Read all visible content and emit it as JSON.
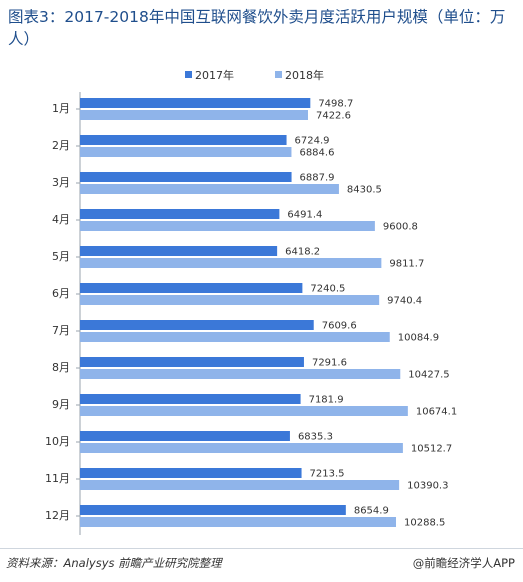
{
  "chart_data": {
    "type": "bar",
    "orientation": "horizontal",
    "title": "图表3：2017-2018年中国互联网餐饮外卖月度活跃用户规模（单位：万人）",
    "categories": [
      "1月",
      "2月",
      "3月",
      "4月",
      "5月",
      "6月",
      "7月",
      "8月",
      "9月",
      "10月",
      "11月",
      "12月"
    ],
    "series": [
      {
        "name": "2017年",
        "color": "#3b78d8",
        "values": [
          7498.7,
          6724.9,
          6887.9,
          6491.4,
          6418.2,
          7240.5,
          7609.6,
          7291.6,
          7181.9,
          6835.3,
          7213.5,
          8654.9
        ]
      },
      {
        "name": "2018年",
        "color": "#8fb4ea",
        "values": [
          7422.6,
          6884.6,
          8430.5,
          9600.8,
          9811.7,
          9740.4,
          10084.9,
          10427.5,
          10674.1,
          10512.7,
          10390.3,
          10288.5
        ]
      }
    ],
    "xlim": [
      0,
      14000
    ],
    "legend_position": "top-center",
    "grid": false
  },
  "footer": {
    "source": "资料来源：Analysys 前瞻产业研究院整理",
    "brand": "@前瞻经济学人APP"
  }
}
